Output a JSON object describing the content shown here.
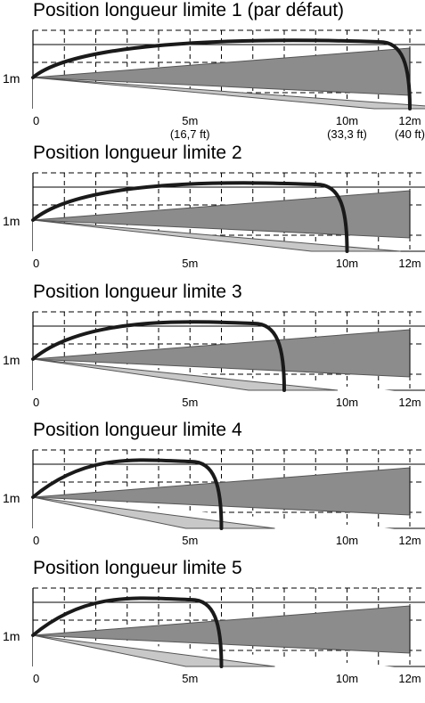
{
  "labels": {
    "height_marker": "1m",
    "origin": "0"
  },
  "colors": {
    "dark_zone": "#8c8c8c",
    "light_zone": "#c8c8c8",
    "curve": "#1a1a1a",
    "grid": "#000000"
  },
  "panels": [
    {
      "title": "Position longueur limite 1 (par défaut)",
      "max_distance_m": 12,
      "detection_limit_m": 12,
      "ticks": [
        {
          "value": 0,
          "label": "0"
        },
        {
          "value": 5,
          "label": "5m",
          "sub": "(16,7 ft)"
        },
        {
          "value": 10,
          "label": "10m",
          "sub": "(33,3 ft)"
        },
        {
          "value": 12,
          "label": "12m",
          "sub": "(40 ft)"
        }
      ]
    },
    {
      "title": "Position longueur limite 2",
      "max_distance_m": 12,
      "detection_limit_m": 10,
      "ticks": [
        {
          "value": 0,
          "label": "0"
        },
        {
          "value": 5,
          "label": "5m"
        },
        {
          "value": 10,
          "label": "10m"
        },
        {
          "value": 12,
          "label": "12m"
        }
      ]
    },
    {
      "title": "Position longueur limite 3",
      "max_distance_m": 12,
      "detection_limit_m": 8,
      "ticks": [
        {
          "value": 0,
          "label": "0"
        },
        {
          "value": 5,
          "label": "5m"
        },
        {
          "value": 10,
          "label": "10m"
        },
        {
          "value": 12,
          "label": "12m"
        }
      ]
    },
    {
      "title": "Position longueur limite 4",
      "max_distance_m": 12,
      "detection_limit_m": 6,
      "ticks": [
        {
          "value": 0,
          "label": "0"
        },
        {
          "value": 5,
          "label": "5m"
        },
        {
          "value": 10,
          "label": "10m"
        },
        {
          "value": 12,
          "label": "12m"
        }
      ]
    },
    {
      "title": "Position longueur limite 5",
      "max_distance_m": 12,
      "detection_limit_m": 6,
      "ticks": [
        {
          "value": 0,
          "label": "0"
        },
        {
          "value": 5,
          "label": "5m"
        },
        {
          "value": 10,
          "label": "10m"
        },
        {
          "value": 12,
          "label": "12m"
        }
      ]
    }
  ]
}
